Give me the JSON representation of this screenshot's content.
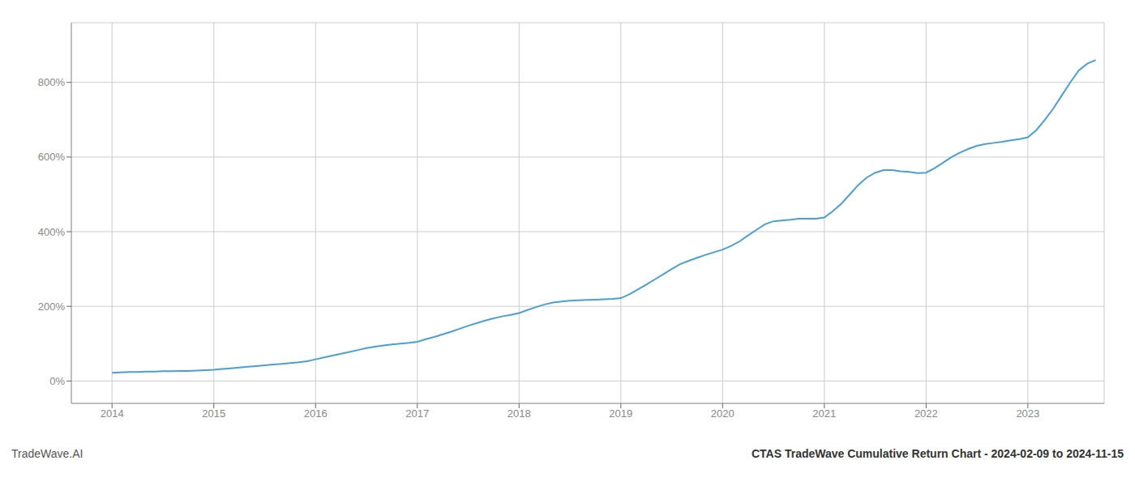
{
  "chart_data": {
    "type": "line",
    "title": "CTAS TradeWave Cumulative Return Chart - 2024-02-09 to 2024-11-15",
    "annotations": [
      "TradeWave.AI"
    ],
    "color": "#4a9fd4",
    "grid": true,
    "xlim": [
      2013.6,
      2023.75
    ],
    "ylim": [
      -60,
      960
    ],
    "xticks": [
      2014,
      2015,
      2016,
      2017,
      2018,
      2019,
      2020,
      2021,
      2022,
      2023
    ],
    "yticks": [
      {
        "value": 0,
        "label": "0%"
      },
      {
        "value": 200,
        "label": "200%"
      },
      {
        "value": 400,
        "label": "400%"
      },
      {
        "value": 600,
        "label": "600%"
      },
      {
        "value": 800,
        "label": "800%"
      }
    ],
    "x": [
      2014.0,
      2014.083,
      2014.167,
      2014.25,
      2014.333,
      2014.417,
      2014.5,
      2014.583,
      2014.667,
      2014.75,
      2014.833,
      2014.917,
      2015.0,
      2015.083,
      2015.167,
      2015.25,
      2015.333,
      2015.417,
      2015.5,
      2015.583,
      2015.667,
      2015.75,
      2015.833,
      2015.917,
      2016.0,
      2016.083,
      2016.167,
      2016.25,
      2016.333,
      2016.417,
      2016.5,
      2016.583,
      2016.667,
      2016.75,
      2016.833,
      2016.917,
      2017.0,
      2017.083,
      2017.167,
      2017.25,
      2017.333,
      2017.417,
      2017.5,
      2017.583,
      2017.667,
      2017.75,
      2017.833,
      2017.917,
      2018.0,
      2018.083,
      2018.167,
      2018.25,
      2018.333,
      2018.417,
      2018.5,
      2018.583,
      2018.667,
      2018.75,
      2018.833,
      2018.917,
      2019.0,
      2019.083,
      2019.167,
      2019.25,
      2019.333,
      2019.417,
      2019.5,
      2019.583,
      2019.667,
      2019.75,
      2019.833,
      2019.917,
      2020.0,
      2020.083,
      2020.167,
      2020.25,
      2020.333,
      2020.417,
      2020.5,
      2020.583,
      2020.667,
      2020.75,
      2020.833,
      2020.917,
      2021.0,
      2021.083,
      2021.167,
      2021.25,
      2021.333,
      2021.417,
      2021.5,
      2021.583,
      2021.667,
      2021.75,
      2021.833,
      2021.917,
      2022.0,
      2022.083,
      2022.167,
      2022.25,
      2022.333,
      2022.417,
      2022.5,
      2022.583,
      2022.667,
      2022.75,
      2022.833,
      2022.917,
      2023.0,
      2023.083,
      2023.167,
      2023.25,
      2023.333,
      2023.417,
      2023.5,
      2023.583,
      2023.667
    ],
    "values": [
      22,
      23,
      24,
      24,
      25,
      25,
      26,
      26,
      27,
      27,
      28,
      29,
      30,
      32,
      34,
      36,
      38,
      40,
      42,
      44,
      46,
      48,
      50,
      53,
      58,
      63,
      68,
      73,
      78,
      83,
      88,
      92,
      95,
      98,
      100,
      102,
      105,
      112,
      118,
      125,
      132,
      140,
      148,
      155,
      162,
      168,
      173,
      177,
      182,
      190,
      198,
      205,
      210,
      213,
      215,
      216,
      217,
      218,
      219,
      220,
      222,
      232,
      245,
      258,
      272,
      286,
      300,
      313,
      322,
      330,
      338,
      345,
      352,
      362,
      374,
      390,
      405,
      420,
      428,
      430,
      432,
      435,
      435,
      435,
      438,
      455,
      475,
      500,
      525,
      545,
      558,
      565,
      565,
      562,
      560,
      557,
      558,
      570,
      585,
      600,
      612,
      622,
      630,
      635,
      638,
      641,
      645,
      648,
      653,
      672,
      700,
      730,
      765,
      800,
      832,
      850,
      860
    ]
  }
}
